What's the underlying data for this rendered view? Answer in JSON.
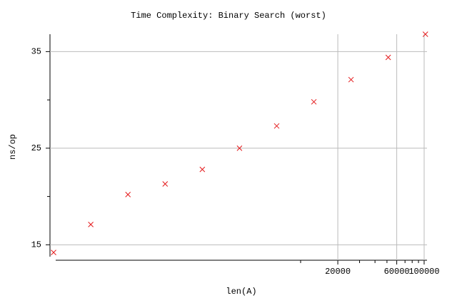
{
  "chart_data": {
    "type": "scatter",
    "title": "Time Complexity: Binary Search (worst)",
    "x_label": "len(A)",
    "y_label": "ns/op",
    "x": [
      100,
      200,
      400,
      800,
      1600,
      3200,
      6400,
      12800,
      25600,
      51200,
      102400
    ],
    "series": [
      {
        "color": "#e41a1c",
        "values": [
          14.2,
          17.1,
          20.2,
          21.3,
          22.8,
          25.0,
          27.3,
          29.8,
          32.1,
          34.4,
          36.8
        ]
      }
    ],
    "xscale": "log",
    "xlim": [
      96,
      105500
    ],
    "xticks": [
      20000,
      60000,
      100000
    ],
    "xminor": [
      10000,
      30000,
      40000,
      50000,
      70000,
      80000,
      90000
    ],
    "ylim": [
      13.4,
      36.8
    ],
    "yticks": [
      15,
      25,
      35
    ],
    "yminor": [
      20,
      30
    ],
    "grid": true
  }
}
